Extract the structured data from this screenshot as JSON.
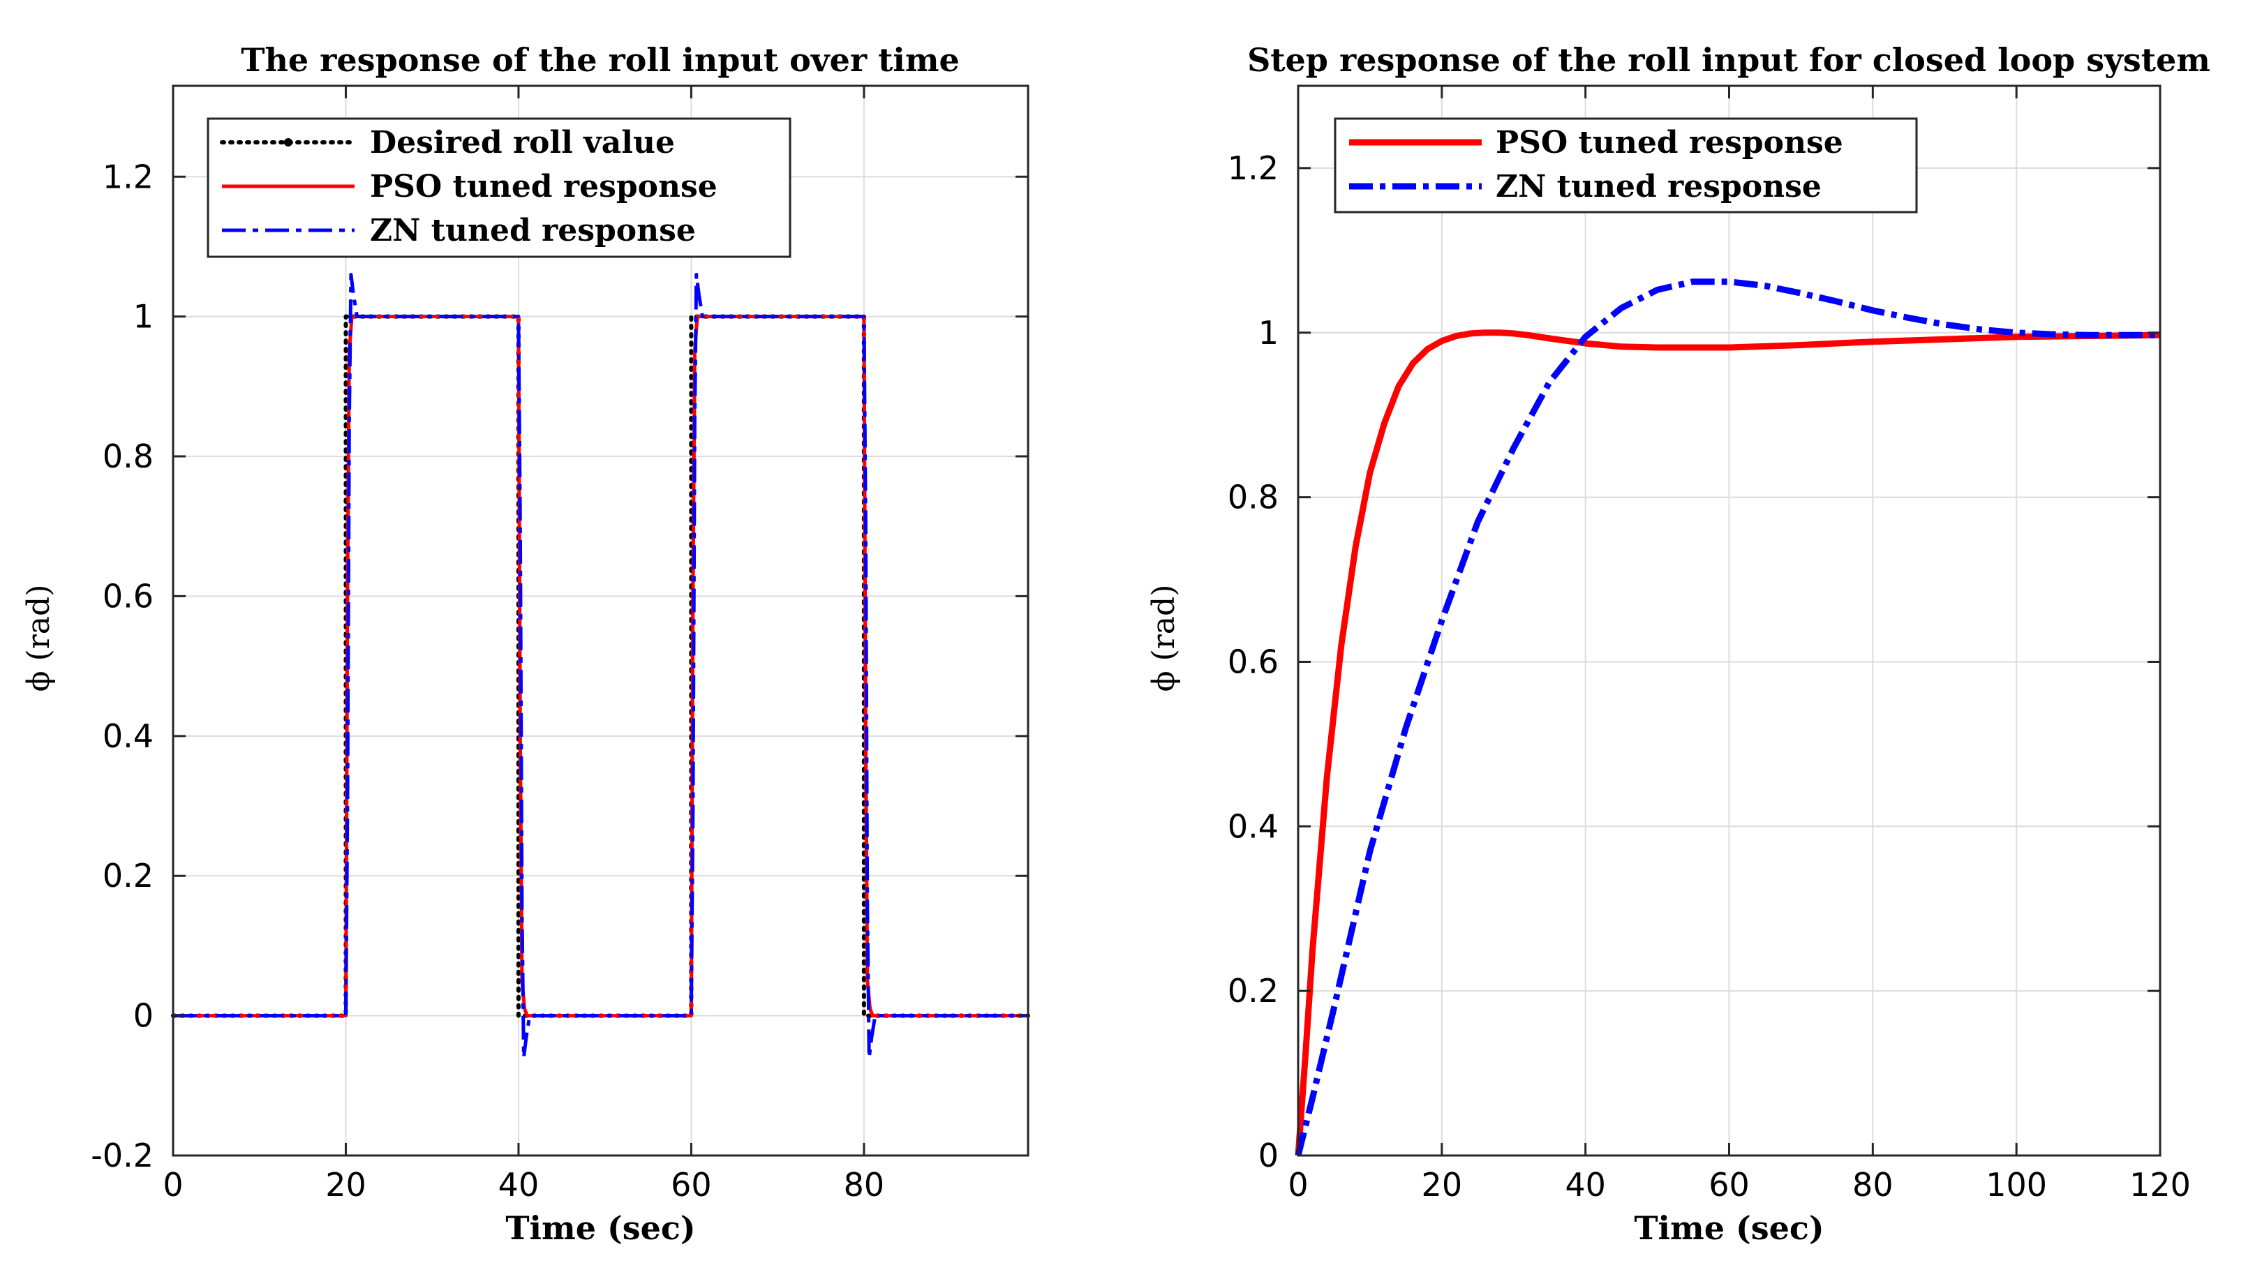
{
  "chart_data": [
    {
      "type": "line",
      "title": "The response of the roll input over time",
      "xlabel": "Time (sec)",
      "ylabel": "ϕ (rad)",
      "xlim": [
        0,
        99
      ],
      "ylim": [
        -0.2,
        1.33
      ],
      "xticks": [
        0,
        20,
        40,
        60,
        80
      ],
      "yticks": [
        -0.2,
        0,
        0.2,
        0.4,
        0.6,
        0.8,
        1,
        1.2
      ],
      "xtick_labels": [
        "0",
        "20",
        "40",
        "60",
        "80"
      ],
      "ytick_labels": [
        "-0.2",
        "0",
        "0.2",
        "0.4",
        "0.6",
        "0.8",
        "1",
        "1.2"
      ],
      "grid": true,
      "legend_position": "top-left",
      "series": [
        {
          "name": "Desired roll value",
          "color": "#000000",
          "style": "dotted",
          "x": [
            0,
            20,
            20,
            40,
            40,
            60,
            60,
            80,
            80,
            99
          ],
          "y": [
            0,
            0,
            1,
            1,
            0,
            0,
            1,
            1,
            0,
            0
          ]
        },
        {
          "name": "PSO tuned response",
          "color": "#ff0000",
          "style": "solid",
          "x": [
            0,
            20,
            20.2,
            20.4,
            20.7,
            21,
            40,
            40.2,
            40.4,
            40.7,
            41,
            60,
            60.2,
            60.4,
            60.7,
            61,
            80,
            80.2,
            80.4,
            80.7,
            81,
            99
          ],
          "y": [
            0,
            0,
            0.6,
            0.95,
            1.0,
            1.0,
            1.0,
            0.4,
            0.05,
            0.01,
            0,
            0,
            0.6,
            0.95,
            1.0,
            1.0,
            1.0,
            0.4,
            0.05,
            0.01,
            0,
            0
          ]
        },
        {
          "name": "ZN tuned response",
          "color": "#0000ff",
          "style": "dashdot",
          "x": [
            0,
            20,
            20.2,
            20.4,
            20.6,
            20.9,
            21.3,
            22,
            40,
            40.2,
            40.4,
            40.6,
            40.9,
            41.3,
            42,
            60,
            60.2,
            60.4,
            60.6,
            60.9,
            61.3,
            62,
            80,
            80.2,
            80.4,
            80.6,
            80.9,
            81.3,
            82,
            99
          ],
          "y": [
            0,
            0,
            0.3,
            0.85,
            1.06,
            1.03,
            1.0,
            1.0,
            1.0,
            0.7,
            0.15,
            -0.06,
            -0.03,
            0.0,
            0.0,
            0.0,
            0.3,
            0.85,
            1.06,
            1.03,
            1.0,
            1.0,
            1.0,
            0.7,
            0.15,
            -0.06,
            -0.03,
            0.0,
            0.0,
            0.0
          ]
        }
      ]
    },
    {
      "type": "line",
      "title": "Step response of the roll input for closed loop system",
      "xlabel": "Time (sec)",
      "ylabel": "ϕ (rad)",
      "xlim": [
        0,
        120
      ],
      "ylim": [
        0,
        1.3
      ],
      "xticks": [
        0,
        20,
        40,
        60,
        80,
        100,
        120
      ],
      "yticks": [
        0,
        0.2,
        0.4,
        0.6,
        0.8,
        1,
        1.2
      ],
      "xtick_labels": [
        "0",
        "20",
        "40",
        "60",
        "80",
        "100",
        "120"
      ],
      "ytick_labels": [
        "0",
        "0.2",
        "0.4",
        "0.6",
        "0.8",
        "1",
        "1.2"
      ],
      "grid": true,
      "legend_position": "top-left",
      "series": [
        {
          "name": "PSO tuned response",
          "color": "#ff0000",
          "style": "solid",
          "x": [
            0,
            1,
            2,
            4,
            6,
            8,
            10,
            12,
            14,
            16,
            18,
            20,
            22,
            24,
            26,
            28,
            30,
            32,
            35,
            40,
            45,
            50,
            60,
            70,
            80,
            90,
            100,
            110,
            120
          ],
          "y": [
            0,
            0.12,
            0.25,
            0.46,
            0.62,
            0.74,
            0.83,
            0.89,
            0.935,
            0.963,
            0.98,
            0.99,
            0.996,
            0.999,
            1.0,
            1.0,
            0.999,
            0.997,
            0.993,
            0.987,
            0.983,
            0.982,
            0.982,
            0.985,
            0.989,
            0.992,
            0.995,
            0.996,
            0.997
          ]
        },
        {
          "name": "ZN tuned response",
          "color": "#0000ff",
          "style": "dashdot",
          "x": [
            0,
            2,
            5,
            10,
            15,
            20,
            25,
            30,
            35,
            40,
            45,
            50,
            55,
            60,
            65,
            70,
            75,
            80,
            85,
            90,
            95,
            100,
            105,
            110,
            115,
            120
          ],
          "y": [
            0,
            0.07,
            0.18,
            0.37,
            0.52,
            0.65,
            0.77,
            0.86,
            0.94,
            0.995,
            1.03,
            1.052,
            1.062,
            1.062,
            1.057,
            1.048,
            1.038,
            1.027,
            1.018,
            1.01,
            1.004,
            1.0,
            0.998,
            0.997,
            0.997,
            0.997
          ]
        }
      ]
    }
  ]
}
